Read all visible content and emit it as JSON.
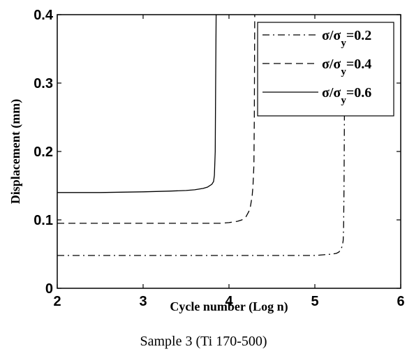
{
  "chart_data": {
    "type": "line",
    "xlabel": "Cycle number (Log n)",
    "ylabel": "Displacement (mm)",
    "xlim": [
      2,
      6
    ],
    "ylim": [
      0,
      0.4
    ],
    "xticks": [
      2,
      3,
      4,
      5,
      6
    ],
    "yticks": [
      {
        "value": 0,
        "label": "0"
      },
      {
        "value": 0.1,
        "label": "0.1"
      },
      {
        "value": 0.2,
        "label": "0.2"
      },
      {
        "value": 0.3,
        "label": "0.3"
      },
      {
        "value": 0.4,
        "label": "0.4"
      }
    ],
    "grid": false,
    "legend_position": "top-right",
    "series": [
      {
        "name": "σ/σy=0.2",
        "legend": {
          "base": "σ/σ",
          "sub": "y",
          "tail": "=0.2"
        },
        "style": "dashdot",
        "color": "#000000",
        "x": [
          2.0,
          2.5,
          3.0,
          3.5,
          4.0,
          4.5,
          5.0,
          5.1,
          5.2,
          5.25,
          5.28,
          5.3,
          5.32,
          5.33,
          5.335,
          5.34,
          5.343,
          5.345
        ],
        "y": [
          0.048,
          0.048,
          0.048,
          0.048,
          0.048,
          0.048,
          0.048,
          0.049,
          0.05,
          0.051,
          0.053,
          0.056,
          0.062,
          0.07,
          0.09,
          0.15,
          0.22,
          0.26
        ]
      },
      {
        "name": "σ/σy=0.4",
        "legend": {
          "base": "σ/σ",
          "sub": "y",
          "tail": "=0.4"
        },
        "style": "dashed",
        "color": "#000000",
        "x": [
          2.0,
          2.5,
          3.0,
          3.5,
          3.9,
          4.0,
          4.1,
          4.15,
          4.2,
          4.23,
          4.25,
          4.27,
          4.28,
          4.29,
          4.295,
          4.3
        ],
        "y": [
          0.095,
          0.095,
          0.095,
          0.095,
          0.095,
          0.096,
          0.098,
          0.1,
          0.105,
          0.112,
          0.12,
          0.135,
          0.15,
          0.18,
          0.25,
          0.4
        ]
      },
      {
        "name": "σ/σy=0.6",
        "legend": {
          "base": "σ/σ",
          "sub": "y",
          "tail": "=0.6"
        },
        "style": "solid",
        "color": "#000000",
        "x": [
          2.0,
          2.5,
          3.0,
          3.3,
          3.5,
          3.6,
          3.7,
          3.75,
          3.8,
          3.82,
          3.83,
          3.84,
          3.845,
          3.85
        ],
        "y": [
          0.14,
          0.14,
          0.141,
          0.142,
          0.143,
          0.144,
          0.146,
          0.148,
          0.152,
          0.156,
          0.165,
          0.2,
          0.3,
          0.4
        ]
      }
    ]
  },
  "caption": "Sample 3 (Ti 170-500)"
}
